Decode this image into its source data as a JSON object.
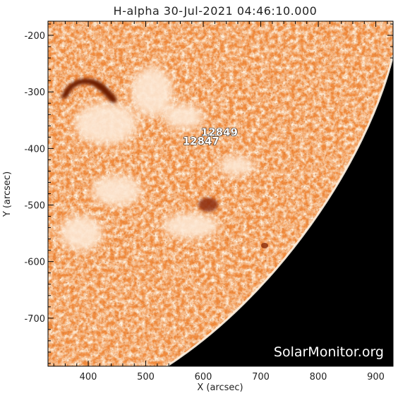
{
  "title": "H-alpha 30-Jul-2021 04:46:10.000",
  "x_axis": {
    "label": "X (arcsec)",
    "range": [
      330,
      930
    ],
    "ticks": [
      "400",
      "500",
      "600",
      "700",
      "800",
      "900"
    ]
  },
  "y_axis": {
    "label": "Y (arcsec)",
    "range": [
      -785,
      -175
    ],
    "ticks": [
      "-200",
      "-300",
      "-400",
      "-500",
      "-600",
      "-700"
    ]
  },
  "regions": [
    {
      "label": "12849",
      "x": 628,
      "y": -378
    },
    {
      "label": "12847",
      "x": 596,
      "y": -393
    }
  ],
  "watermark": "SolarMonitor.org",
  "colors": {
    "disk_base": "#f08a3c",
    "disk_light": "#fbd8b4",
    "disk_dark": "#8a2a08",
    "space": "#000000",
    "frame": "#000000"
  }
}
